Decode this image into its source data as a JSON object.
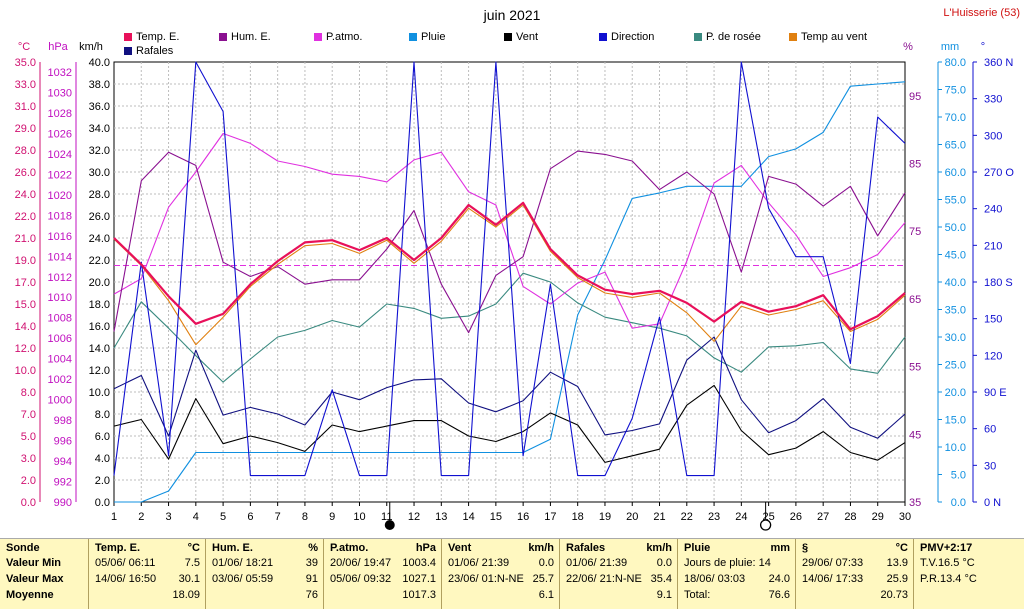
{
  "title": "juin 2021",
  "station": "L'Huisserie (53)",
  "legend": [
    {
      "label": "Temp. E.",
      "color": "#e8105a"
    },
    {
      "label": "Hum. E.",
      "color": "#8a1090"
    },
    {
      "label": "P.atmo.",
      "color": "#e030e0"
    },
    {
      "label": "Pluie",
      "color": "#1090e0"
    },
    {
      "label": "Vent",
      "color": "#000000"
    },
    {
      "label": "Direction",
      "color": "#1010d0"
    },
    {
      "label": "P. de rosée",
      "color": "#3a8a80"
    },
    {
      "label": "Temp au vent",
      "color": "#e08010"
    },
    {
      "label": "Rafales",
      "color": "#101080"
    }
  ],
  "axis_units": {
    "temp": "°C",
    "press": "hPa",
    "wind": "km/h",
    "hum": "%",
    "rain": "mm",
    "dir": "°"
  },
  "x_ticks": [
    "1",
    "2",
    "3",
    "4",
    "5",
    "6",
    "7",
    "8",
    "9",
    "10",
    "11",
    "12",
    "13",
    "14",
    "15",
    "16",
    "17",
    "18",
    "19",
    "20",
    "21",
    "22",
    "23",
    "24",
    "25",
    "26",
    "27",
    "28",
    "29",
    "30"
  ],
  "temp_ticks": [
    "35.0",
    "33.0",
    "31.0",
    "29.0",
    "28.0",
    "26.0",
    "24.0",
    "22.0",
    "21.0",
    "19.0",
    "17.0",
    "15.0",
    "14.0",
    "12.0",
    "10.0",
    "8.0",
    "7.0",
    "5.0",
    "3.0",
    "2.0",
    "0.0"
  ],
  "press_ticks": [
    "1032",
    "1030",
    "1028",
    "1026",
    "1024",
    "1022",
    "1020",
    "1018",
    "1016",
    "1014",
    "1012",
    "1010",
    "1008",
    "1006",
    "1004",
    "1002",
    "1000",
    "998",
    "996",
    "994",
    "992",
    "990"
  ],
  "wind_ticks": [
    "40.0",
    "38.0",
    "36.0",
    "34.0",
    "32.0",
    "30.0",
    "28.0",
    "26.0",
    "24.0",
    "22.0",
    "20.0",
    "18.0",
    "16.0",
    "14.0",
    "12.0",
    "10.0",
    "8.0",
    "6.0",
    "4.0",
    "2.0",
    "0.0"
  ],
  "hum_ticks": [
    "95",
    "85",
    "75",
    "65",
    "55",
    "45",
    "35"
  ],
  "rain_ticks": [
    "80.0",
    "75.0",
    "70.0",
    "65.0",
    "60.0",
    "55.0",
    "50.0",
    "45.0",
    "40.0",
    "35.0",
    "30.0",
    "25.0",
    "20.0",
    "15.0",
    "10.0",
    "5.0",
    "0.0"
  ],
  "dir_ticks": [
    "360 N",
    "330",
    "300",
    "270 O",
    "240",
    "210",
    "180 S",
    "150",
    "120",
    "90 E",
    "60",
    "30",
    "0 N"
  ],
  "chart_data": {
    "type": "line",
    "title": "juin 2021",
    "x": [
      1,
      2,
      3,
      4,
      5,
      6,
      7,
      8,
      9,
      10,
      11,
      12,
      13,
      14,
      15,
      16,
      17,
      18,
      19,
      20,
      21,
      22,
      23,
      24,
      25,
      26,
      27,
      28,
      29,
      30
    ],
    "x_range": [
      1,
      30
    ],
    "axes": {
      "wind_kmh": [
        0,
        40
      ],
      "temp_c": [
        0,
        35
      ],
      "pressure_hpa": [
        990,
        1032
      ],
      "humidity_pct": [
        35,
        100
      ],
      "rain_mm": [
        0,
        80
      ],
      "direction_deg": [
        0,
        360
      ]
    },
    "mean_temperature_line_kmh": 21.5,
    "series": [
      {
        "name": "Temp. E.",
        "axis": "wind_kmh",
        "color": "#e8105a",
        "values": [
          24.0,
          21.6,
          18.7,
          16.2,
          17.1,
          19.8,
          21.9,
          23.6,
          23.8,
          22.9,
          24.0,
          22.0,
          24.0,
          27.0,
          25.2,
          27.2,
          23.0,
          20.6,
          19.3,
          18.9,
          19.2,
          18.1,
          16.4,
          18.2,
          17.3,
          17.8,
          18.8,
          15.7,
          16.9,
          19.0
        ]
      },
      {
        "name": "Temp au vent",
        "axis": "wind_kmh",
        "color": "#e08010",
        "values": [
          23.9,
          21.5,
          18.3,
          14.3,
          16.8,
          19.6,
          21.6,
          23.3,
          23.5,
          22.6,
          23.8,
          21.7,
          23.7,
          26.7,
          25.0,
          27.0,
          22.8,
          20.4,
          19.0,
          18.6,
          19.0,
          17.2,
          14.6,
          17.8,
          17.0,
          17.5,
          18.3,
          15.5,
          16.6,
          18.8
        ]
      },
      {
        "name": "Hum. E.",
        "axis": "wind_kmh",
        "color": "#8a1090",
        "values": [
          15.5,
          29.2,
          31.8,
          30.6,
          21.8,
          20.5,
          21.4,
          19.8,
          20.2,
          20.2,
          23.0,
          26.5,
          19.8,
          15.4,
          20.6,
          22.3,
          30.3,
          31.9,
          31.6,
          31.0,
          28.4,
          30.0,
          28.0,
          20.9,
          29.6,
          28.9,
          26.9,
          28.7,
          24.2,
          28.1
        ]
      },
      {
        "name": "P.atmo.",
        "axis": "wind_kmh",
        "color": "#e030e0",
        "values": [
          18.9,
          20.3,
          26.8,
          30.0,
          33.5,
          32.6,
          31.0,
          30.5,
          29.8,
          29.6,
          29.1,
          31.1,
          31.8,
          28.2,
          27.0,
          19.6,
          18.0,
          19.9,
          20.9,
          15.8,
          16.2,
          21.9,
          29.0,
          30.6,
          27.2,
          24.3,
          20.5,
          21.3,
          22.5,
          25.4
        ]
      },
      {
        "name": "P. de rosée",
        "axis": "wind_kmh",
        "color": "#3a8a80",
        "values": [
          14.0,
          18.2,
          15.8,
          13.3,
          10.9,
          13.0,
          15.0,
          15.6,
          16.5,
          15.9,
          18.0,
          17.6,
          16.7,
          16.9,
          18.0,
          20.8,
          20.0,
          18.1,
          16.8,
          16.3,
          15.8,
          15.1,
          13.1,
          11.8,
          14.1,
          14.2,
          14.5,
          12.1,
          11.7,
          15.0
        ]
      },
      {
        "name": "Vent",
        "axis": "wind_kmh",
        "color": "#000000",
        "values": [
          6.9,
          7.5,
          3.9,
          9.4,
          5.3,
          6.0,
          5.4,
          4.6,
          7.0,
          6.4,
          6.9,
          7.4,
          7.4,
          6.0,
          5.5,
          6.4,
          8.1,
          7.0,
          3.6,
          4.2,
          4.8,
          8.8,
          10.6,
          6.5,
          4.3,
          4.9,
          6.4,
          4.5,
          3.8,
          5.4
        ]
      },
      {
        "name": "Rafales",
        "axis": "wind_kmh",
        "color": "#101080",
        "values": [
          10.3,
          11.5,
          6.0,
          13.8,
          7.9,
          8.6,
          8.0,
          7.0,
          10.0,
          9.3,
          10.4,
          11.1,
          11.2,
          9.0,
          8.2,
          9.2,
          11.8,
          10.5,
          6.1,
          6.5,
          7.1,
          12.9,
          15.0,
          9.3,
          6.3,
          7.4,
          9.4,
          6.8,
          5.8,
          8.0
        ]
      },
      {
        "name": "Direction",
        "axis": "wind_kmh",
        "color": "#1010d0",
        "values": [
          2.4,
          21.8,
          4.2,
          40.0,
          35.5,
          2.4,
          2.4,
          2.4,
          10.2,
          2.4,
          2.4,
          40.0,
          2.4,
          2.4,
          40.0,
          4.2,
          19.8,
          2.4,
          2.4,
          7.6,
          16.8,
          2.4,
          2.4,
          40.0,
          26.7,
          22.3,
          22.3,
          12.6,
          35.0,
          32.6
        ]
      },
      {
        "name": "Pluie",
        "axis": "wind_kmh",
        "color": "#1090e0",
        "values": [
          0.0,
          0.0,
          1.0,
          4.5,
          4.5,
          4.5,
          4.5,
          4.5,
          4.5,
          4.5,
          4.5,
          4.5,
          4.5,
          4.5,
          4.5,
          4.5,
          5.7,
          17.0,
          22.0,
          27.6,
          28.1,
          28.7,
          28.7,
          28.7,
          31.4,
          32.1,
          33.6,
          37.8,
          38.0,
          38.2
        ]
      }
    ]
  },
  "markers": {
    "new_moon_day": "11",
    "full_moon_day": "25"
  },
  "stats": {
    "sonde": {
      "title": "Sonde",
      "min_label": "Valeur Min",
      "max_label": "Valeur Max",
      "avg_label": "Moyenne"
    },
    "temp": {
      "title": "Temp. E.",
      "unit": "°C",
      "min_date": "05/06/ 06:11",
      "min_val": "7.5",
      "max_date": "14/06/ 16:50",
      "max_val": "30.1",
      "avg": "18.09"
    },
    "hum": {
      "title": "Hum. E.",
      "unit": "%",
      "min_date": "01/06/ 18:21",
      "min_val": "39",
      "max_date": "03/06/ 05:59",
      "max_val": "91",
      "avg": "76"
    },
    "patmo": {
      "title": "P.atmo.",
      "unit": "hPa",
      "min_date": "20/06/ 19:47",
      "min_val": "1003.4",
      "max_date": "05/06/ 09:32",
      "max_val": "1027.1",
      "avg": "1017.3"
    },
    "vent": {
      "title": "Vent",
      "unit": "km/h",
      "min_date": "01/06/ 21:39",
      "min_val": "0.0",
      "max_date": "23/06/ 01:N-NE",
      "max_val": "25.7",
      "avg": "6.1"
    },
    "rafales": {
      "title": "Rafales",
      "unit": "km/h",
      "min_date": "01/06/ 21:39",
      "min_val": "0.0",
      "max_date": "22/06/ 21:N-NE",
      "max_val": "35.4",
      "avg": "9.1"
    },
    "pluie": {
      "title": "Pluie",
      "unit": "mm",
      "row1": "Jours de pluie: 14",
      "row2_label": "18/06/ 03:03",
      "row2_val": "24.0",
      "row3_label": "Total:",
      "row3_val": "76.6"
    },
    "sect": {
      "title": "§",
      "unit": "°C",
      "min_date": "29/06/ 07:33",
      "min_val": "13.9",
      "max_date": "14/06/ 17:33",
      "max_val": "25.9",
      "avg": "20.73"
    },
    "pmv": {
      "title": "PMV+2:17",
      "row1": "T.V.16.5 °C",
      "row2": "P.R.13.4 °C"
    }
  }
}
